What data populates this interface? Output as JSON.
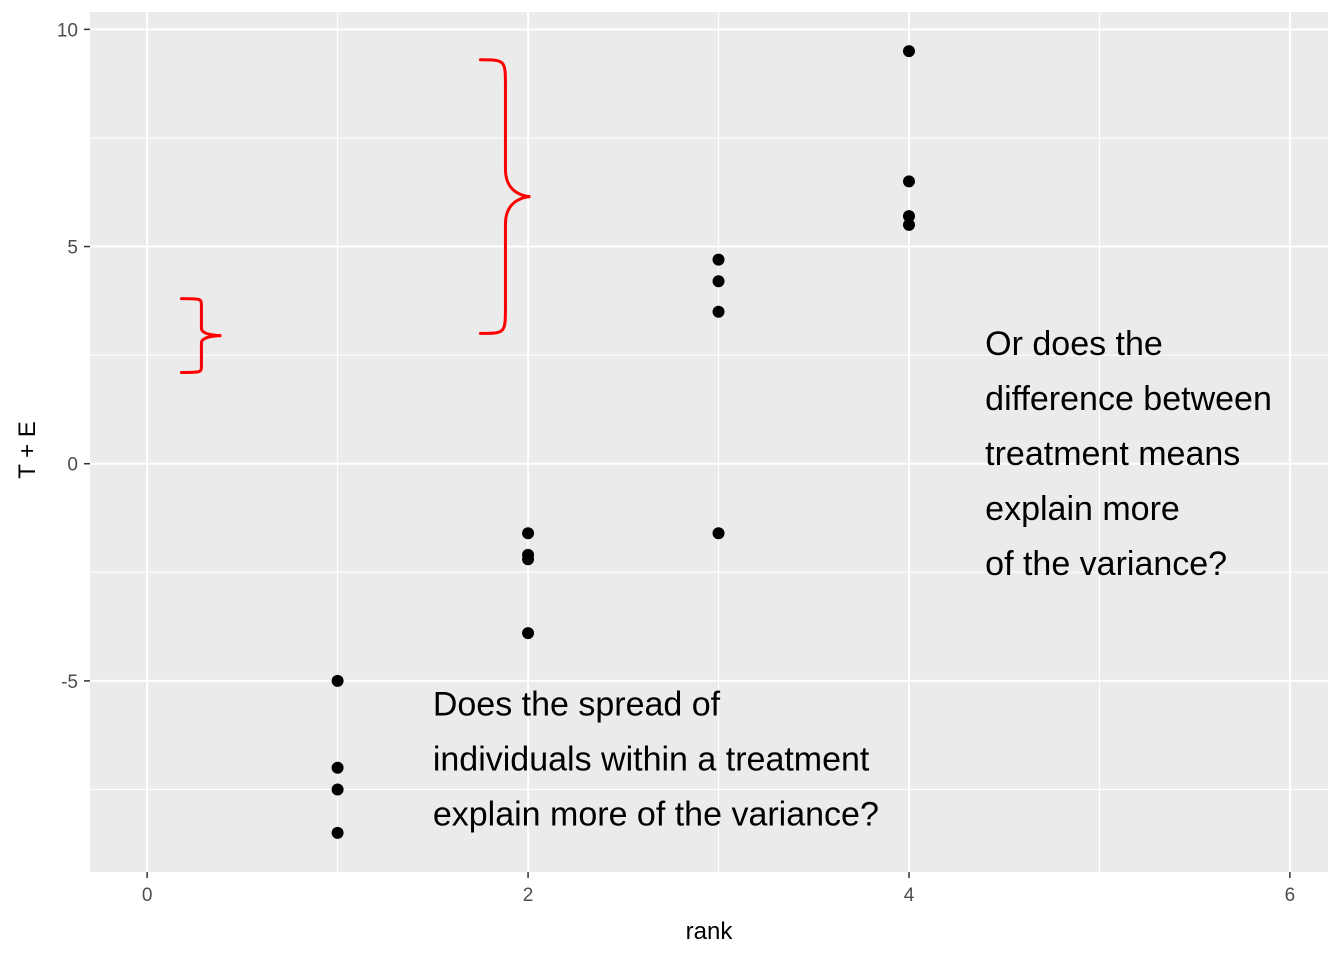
{
  "chart_data": {
    "type": "scatter",
    "title": "",
    "xlabel": "rank",
    "ylabel": "T + E",
    "xlim": [
      -0.3,
      6.2
    ],
    "ylim": [
      -9.4,
      10.4
    ],
    "x_ticks": [
      0,
      2,
      4,
      6
    ],
    "y_ticks": [
      -5,
      0,
      5,
      10
    ],
    "x_tick_labels": [
      "0",
      "2",
      "4",
      "6"
    ],
    "y_tick_labels": [
      "-5",
      "0",
      "5",
      "10"
    ],
    "grid": true,
    "legend": "none",
    "point_color": "#000000",
    "series": [
      {
        "points": [
          {
            "x": 1,
            "y": -5.0
          },
          {
            "x": 1,
            "y": -7.0
          },
          {
            "x": 1,
            "y": -7.5
          },
          {
            "x": 1,
            "y": -8.5
          },
          {
            "x": 2,
            "y": -1.6
          },
          {
            "x": 2,
            "y": -2.1
          },
          {
            "x": 2,
            "y": -2.2
          },
          {
            "x": 2,
            "y": -3.9
          },
          {
            "x": 3,
            "y": 4.7
          },
          {
            "x": 3,
            "y": 4.2
          },
          {
            "x": 3,
            "y": 3.5
          },
          {
            "x": 3,
            "y": -1.6
          },
          {
            "x": 4,
            "y": 9.5
          },
          {
            "x": 4,
            "y": 6.5
          },
          {
            "x": 4,
            "y": 5.7
          },
          {
            "x": 4,
            "y": 5.5
          }
        ]
      }
    ],
    "annotations": [
      {
        "id": "within",
        "anchor": {
          "x": 1.5,
          "y": -5.8
        },
        "lines": [
          "Does the spread of",
          "individuals within a treatment",
          "explain more of the variance?"
        ]
      },
      {
        "id": "between",
        "anchor": {
          "x": 4.4,
          "y": 2.5
        },
        "lines": [
          "Or does the",
          "difference between",
          "treatment means",
          "explain more",
          "of the variance?"
        ]
      }
    ],
    "braces": [
      {
        "id": "small-brace",
        "x": 0.18,
        "y_top": 3.8,
        "y_bottom": 2.1,
        "color": "#ff0000"
      },
      {
        "id": "large-brace",
        "x": 1.75,
        "y_top": 9.3,
        "y_bottom": 3.0,
        "color": "#ff0000"
      }
    ],
    "panel_background": "#ebebeb",
    "grid_color": "#ffffff"
  }
}
